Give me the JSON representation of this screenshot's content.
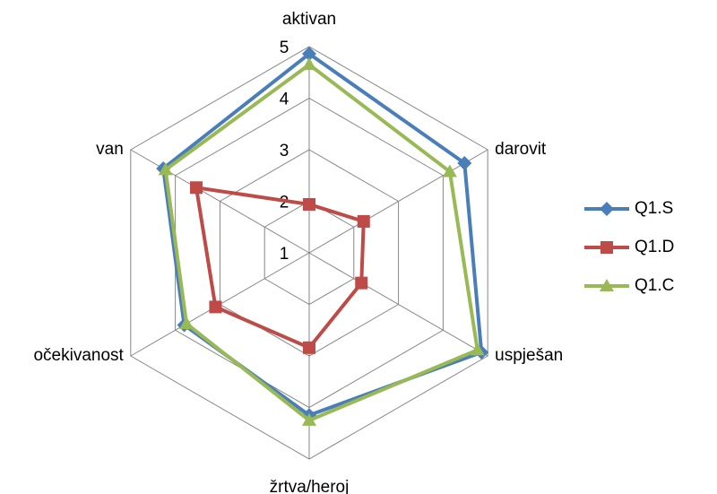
{
  "chart_data": {
    "type": "radar",
    "categories": [
      "aktivan",
      "darovit",
      "uspješan",
      "žrtva/heroj",
      "očekivanost",
      "van"
    ],
    "ylim": [
      1,
      5
    ],
    "yticks": [
      1,
      2,
      3,
      4,
      5
    ],
    "grid": true,
    "legend": "right",
    "series": [
      {
        "name": "Q1.S",
        "color": "#4a7ebb",
        "marker": "diamond",
        "values": [
          4.86,
          4.48,
          4.86,
          4.15,
          3.8,
          4.27
        ]
      },
      {
        "name": "Q1.D",
        "color": "#be4b48",
        "marker": "square",
        "values": [
          1.94,
          2.22,
          2.17,
          2.84,
          3.1,
          3.53
        ]
      },
      {
        "name": "Q1.C",
        "color": "#98b954",
        "marker": "triangle",
        "values": [
          4.65,
          4.15,
          4.77,
          4.25,
          3.75,
          4.22
        ]
      }
    ]
  }
}
